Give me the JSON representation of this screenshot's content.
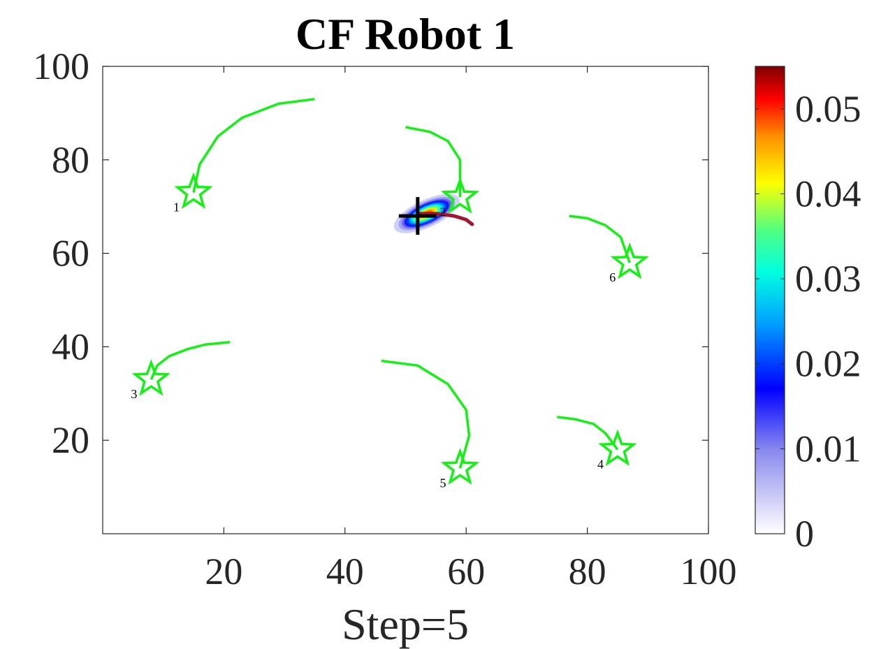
{
  "chart_data": {
    "type": "scatter",
    "title": "CF Robot 1",
    "xlabel": "Step=5",
    "ylabel": "",
    "xlim": [
      0,
      100
    ],
    "ylim": [
      0,
      100
    ],
    "x_ticks": [
      20,
      40,
      60,
      80,
      100
    ],
    "y_ticks": [
      20,
      40,
      60,
      80,
      100
    ],
    "grid": false,
    "colorbar": {
      "range": [
        0,
        0.055
      ],
      "ticks": [
        0,
        0.01,
        0.02,
        0.03,
        0.04,
        0.05
      ],
      "tick_labels": [
        "0",
        "0.01",
        "0.02",
        "0.03",
        "0.04",
        "0.05"
      ],
      "colormap": "white-blue-cyan-yellow-red-darkred"
    },
    "targets": [
      {
        "label": "1",
        "x": 15,
        "y": 73,
        "path": [
          [
            35,
            93
          ],
          [
            29,
            92
          ],
          [
            23,
            89
          ],
          [
            19,
            85
          ],
          [
            16,
            79
          ],
          [
            15,
            73
          ]
        ]
      },
      {
        "label": "2",
        "x": 59,
        "y": 72,
        "path": [
          [
            50,
            87
          ],
          [
            54,
            86
          ],
          [
            57,
            84
          ],
          [
            59,
            80
          ],
          [
            59,
            76
          ],
          [
            59,
            72
          ]
        ]
      },
      {
        "label": "3",
        "x": 8,
        "y": 33,
        "path": [
          [
            21,
            41
          ],
          [
            17,
            40.5
          ],
          [
            14,
            39.5
          ],
          [
            11,
            38
          ],
          [
            9,
            36
          ],
          [
            8,
            33
          ]
        ]
      },
      {
        "label": "4",
        "x": 85,
        "y": 18,
        "path": [
          [
            75,
            25
          ],
          [
            78,
            24.5
          ],
          [
            81,
            23.5
          ],
          [
            83,
            21.5
          ],
          [
            85,
            18
          ]
        ]
      },
      {
        "label": "5",
        "x": 59,
        "y": 14,
        "path": [
          [
            46,
            37
          ],
          [
            52,
            36
          ],
          [
            57,
            32
          ],
          [
            60,
            26.5
          ],
          [
            60.5,
            21
          ],
          [
            59,
            14
          ]
        ]
      },
      {
        "label": "6",
        "x": 87,
        "y": 58,
        "path": [
          [
            77,
            68
          ],
          [
            80,
            67.5
          ],
          [
            83,
            66
          ],
          [
            85.5,
            63.5
          ],
          [
            87,
            58
          ]
        ]
      }
    ],
    "robot": {
      "position": [
        52,
        68
      ],
      "trajectory": [
        [
          52,
          68.5
        ],
        [
          55,
          68.5
        ],
        [
          58,
          68
        ],
        [
          60,
          67.2
        ],
        [
          61,
          66.2
        ]
      ]
    },
    "density": {
      "center": [
        53.5,
        68.5
      ],
      "peak": 0.052,
      "sigma_major": 2.6,
      "sigma_minor": 1.3,
      "angle_deg": 25
    },
    "colors": {
      "target": "#12f212",
      "robot_path": "#a3162e",
      "robot_marker": "#000000"
    }
  }
}
